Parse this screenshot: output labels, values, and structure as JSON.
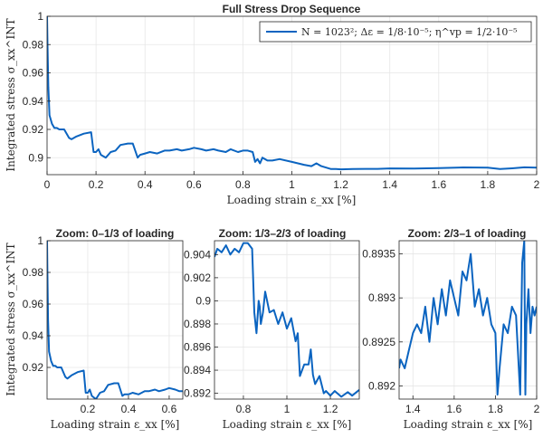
{
  "colors": {
    "line": "#0b64c0",
    "axis": "#262626",
    "grid": "#e6e6e6"
  },
  "chart_data": [
    {
      "type": "line",
      "title": "Full Stress Drop Sequence",
      "xlabel": "Loading strain ε_xx [%]",
      "ylabel": "Integrated stress σ_xx^INT",
      "xlim": [
        0,
        2
      ],
      "ylim": [
        0.888,
        1.0
      ],
      "xticks": [
        0,
        0.2,
        0.4,
        0.6,
        0.8,
        1,
        1.2,
        1.4,
        1.6,
        1.8,
        2
      ],
      "xtick_labels": [
        "0",
        "0.2",
        "0.4",
        "0.6",
        "0.8",
        "1",
        "1.2",
        "1.4",
        "1.6",
        "1.8",
        "2"
      ],
      "yticks": [
        0.9,
        0.92,
        0.94,
        0.96,
        0.98,
        1
      ],
      "ytick_labels": [
        "0.9",
        "0.92",
        "0.94",
        "0.96",
        "0.98",
        "1"
      ],
      "grid": true,
      "legend": "top-right",
      "series": [
        {
          "name": "N = 1023²; Δε = 1/8·10⁻⁵; η^vp = 1/2·10⁻⁵",
          "x": [
            0,
            0.002,
            0.005,
            0.01,
            0.02,
            0.03,
            0.04,
            0.05,
            0.07,
            0.09,
            0.1,
            0.12,
            0.15,
            0.18,
            0.19,
            0.2,
            0.21,
            0.22,
            0.24,
            0.26,
            0.28,
            0.3,
            0.33,
            0.35,
            0.37,
            0.38,
            0.4,
            0.42,
            0.45,
            0.48,
            0.5,
            0.53,
            0.55,
            0.58,
            0.6,
            0.63,
            0.65,
            0.68,
            0.7,
            0.73,
            0.75,
            0.78,
            0.8,
            0.82,
            0.84,
            0.85,
            0.86,
            0.87,
            0.88,
            0.9,
            0.92,
            0.95,
            1.0,
            1.05,
            1.08,
            1.1,
            1.12,
            1.14,
            1.16,
            1.18,
            1.2,
            1.25,
            1.3,
            1.35,
            1.4,
            1.5,
            1.6,
            1.7,
            1.8,
            1.85,
            1.9,
            1.95,
            2.0
          ],
          "y": [
            1.0,
            0.98,
            0.95,
            0.93,
            0.924,
            0.921,
            0.921,
            0.92,
            0.92,
            0.914,
            0.913,
            0.915,
            0.917,
            0.918,
            0.904,
            0.904,
            0.906,
            0.902,
            0.9,
            0.904,
            0.905,
            0.909,
            0.91,
            0.91,
            0.9,
            0.902,
            0.903,
            0.904,
            0.903,
            0.905,
            0.905,
            0.906,
            0.905,
            0.906,
            0.907,
            0.906,
            0.905,
            0.906,
            0.905,
            0.904,
            0.906,
            0.904,
            0.905,
            0.905,
            0.904,
            0.897,
            0.899,
            0.896,
            0.9,
            0.898,
            0.898,
            0.899,
            0.897,
            0.895,
            0.894,
            0.896,
            0.894,
            0.893,
            0.892,
            0.892,
            0.8918,
            0.892,
            0.8921,
            0.8921,
            0.8924,
            0.8923,
            0.8927,
            0.8931,
            0.893,
            0.892,
            0.8925,
            0.8932,
            0.893
          ]
        }
      ]
    },
    {
      "type": "line",
      "title": "Zoom: 0–1/3 of loading",
      "xlabel": "Loading strain ε_xx [%]",
      "ylabel": "Integrated stress σ_xx^INT",
      "xlim": [
        0,
        0.667
      ],
      "ylim": [
        0.9,
        1.0
      ],
      "xticks": [
        0.2,
        0.4,
        0.6
      ],
      "xtick_labels": [
        "0.2",
        "0.4",
        "0.6"
      ],
      "yticks": [
        0.92,
        0.94,
        0.96,
        0.98,
        1
      ],
      "ytick_labels": [
        "0.92",
        "0.94",
        "0.96",
        "0.98",
        "1"
      ],
      "grid": true,
      "series": [
        {
          "x": [
            0,
            0.002,
            0.005,
            0.01,
            0.02,
            0.03,
            0.04,
            0.05,
            0.07,
            0.09,
            0.1,
            0.12,
            0.15,
            0.18,
            0.19,
            0.2,
            0.21,
            0.22,
            0.24,
            0.26,
            0.28,
            0.3,
            0.33,
            0.35,
            0.37,
            0.38,
            0.4,
            0.42,
            0.45,
            0.48,
            0.5,
            0.53,
            0.55,
            0.58,
            0.6,
            0.63,
            0.65,
            0.667
          ],
          "y": [
            1.0,
            0.98,
            0.95,
            0.93,
            0.924,
            0.921,
            0.921,
            0.92,
            0.92,
            0.914,
            0.913,
            0.915,
            0.917,
            0.918,
            0.904,
            0.904,
            0.906,
            0.902,
            0.9,
            0.904,
            0.905,
            0.909,
            0.91,
            0.91,
            0.902,
            0.903,
            0.903,
            0.904,
            0.903,
            0.905,
            0.905,
            0.906,
            0.905,
            0.906,
            0.907,
            0.906,
            0.905,
            0.905
          ]
        }
      ]
    },
    {
      "type": "line",
      "title": "Zoom: 1/3–2/3 of loading",
      "xlabel": "Loading strain ε_xx [%]",
      "ylabel": "",
      "xlim": [
        0.667,
        1.333
      ],
      "ylim": [
        0.8915,
        0.9052
      ],
      "xticks": [
        0.8,
        1,
        1.2
      ],
      "xtick_labels": [
        "0.8",
        "1",
        "1.2"
      ],
      "yticks": [
        0.892,
        0.894,
        0.896,
        0.898,
        0.9,
        0.902,
        0.904
      ],
      "ytick_labels": [
        "0.892",
        "0.894",
        "0.896",
        "0.898",
        "0.9",
        "0.902",
        "0.904"
      ],
      "grid": true,
      "series": [
        {
          "x": [
            0.667,
            0.68,
            0.7,
            0.72,
            0.74,
            0.76,
            0.78,
            0.8,
            0.82,
            0.84,
            0.85,
            0.86,
            0.87,
            0.875,
            0.88,
            0.89,
            0.9,
            0.92,
            0.94,
            0.96,
            0.98,
            1.0,
            1.02,
            1.04,
            1.05,
            1.06,
            1.08,
            1.1,
            1.11,
            1.12,
            1.13,
            1.15,
            1.17,
            1.18,
            1.2,
            1.22,
            1.25,
            1.28,
            1.3,
            1.333
          ],
          "y": [
            0.9038,
            0.9045,
            0.9042,
            0.9048,
            0.904,
            0.9045,
            0.9042,
            0.905,
            0.905,
            0.9045,
            0.899,
            0.8972,
            0.9,
            0.8995,
            0.898,
            0.899,
            0.9008,
            0.899,
            0.8992,
            0.898,
            0.899,
            0.8976,
            0.8985,
            0.8965,
            0.8972,
            0.8935,
            0.8945,
            0.8945,
            0.8958,
            0.8936,
            0.8928,
            0.8935,
            0.892,
            0.8922,
            0.8918,
            0.8922,
            0.8917,
            0.8921,
            0.8918,
            0.8923
          ]
        }
      ]
    },
    {
      "type": "line",
      "title": "Zoom: 2/3–1 of loading",
      "xlabel": "Loading strain ε_xx [%]",
      "ylabel": "",
      "xlim": [
        1.333,
        2.0
      ],
      "ylim": [
        0.89185,
        0.89365
      ],
      "xticks": [
        1.4,
        1.6,
        1.8,
        2
      ],
      "xtick_labels": [
        "1.4",
        "1.6",
        "1.8",
        "2"
      ],
      "yticks": [
        0.892,
        0.8925,
        0.893,
        0.8935
      ],
      "ytick_labels": [
        "0.892",
        "0.8925",
        "0.893",
        "0.8935"
      ],
      "grid": true,
      "series": [
        {
          "x": [
            1.333,
            1.34,
            1.36,
            1.38,
            1.4,
            1.42,
            1.44,
            1.46,
            1.48,
            1.5,
            1.52,
            1.54,
            1.56,
            1.58,
            1.6,
            1.62,
            1.64,
            1.66,
            1.68,
            1.7,
            1.72,
            1.74,
            1.76,
            1.78,
            1.8,
            1.81,
            1.82,
            1.84,
            1.86,
            1.88,
            1.9,
            1.92,
            1.93,
            1.94,
            1.945,
            1.95,
            1.96,
            1.97,
            1.98,
            1.99,
            2.0
          ],
          "y": [
            0.8922,
            0.8923,
            0.8922,
            0.8924,
            0.8926,
            0.8927,
            0.8926,
            0.8929,
            0.8925,
            0.893,
            0.8927,
            0.8931,
            0.8928,
            0.8932,
            0.893,
            0.8928,
            0.8933,
            0.8932,
            0.8935,
            0.8929,
            0.8931,
            0.8928,
            0.893,
            0.8927,
            0.8926,
            0.8919,
            0.8922,
            0.8927,
            0.8926,
            0.8929,
            0.8928,
            0.8919,
            0.8934,
            0.89365,
            0.8919,
            0.8927,
            0.8931,
            0.8926,
            0.8929,
            0.8928,
            0.8929
          ]
        }
      ]
    }
  ]
}
